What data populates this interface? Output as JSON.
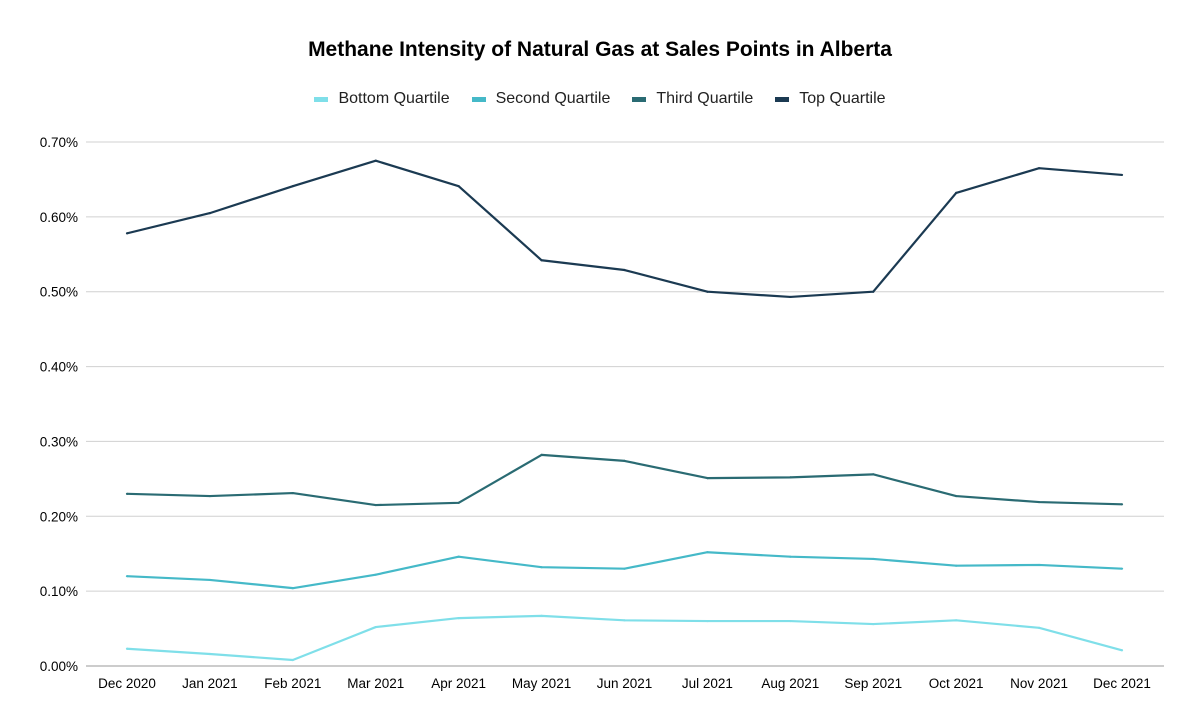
{
  "chart_data": {
    "type": "line",
    "title": "Methane Intensity of Natural Gas at Sales Points in Alberta",
    "xlabel": "",
    "ylabel": "",
    "ylim": [
      0,
      0.7
    ],
    "yticks": [
      "0.00%",
      "0.10%",
      "0.20%",
      "0.30%",
      "0.40%",
      "0.50%",
      "0.60%",
      "0.70%"
    ],
    "grid": true,
    "legend": "top",
    "categories": [
      "Dec 2020",
      "Jan 2021",
      "Feb 2021",
      "Mar 2021",
      "Apr 2021",
      "May 2021",
      "Jun 2021",
      "Jul 2021",
      "Aug 2021",
      "Sep 2021",
      "Oct 2021",
      "Nov 2021",
      "Dec 2021"
    ],
    "series": [
      {
        "name": "Bottom Quartile",
        "color": "#7fdfe9",
        "values": [
          0.023,
          0.016,
          0.008,
          0.052,
          0.064,
          0.067,
          0.061,
          0.06,
          0.06,
          0.056,
          0.061,
          0.051,
          0.021
        ]
      },
      {
        "name": "Second Quartile",
        "color": "#45b9c8",
        "values": [
          0.12,
          0.115,
          0.104,
          0.122,
          0.146,
          0.132,
          0.13,
          0.152,
          0.146,
          0.143,
          0.134,
          0.135,
          0.13
        ]
      },
      {
        "name": "Third Quartile",
        "color": "#2a6b73",
        "values": [
          0.23,
          0.227,
          0.231,
          0.215,
          0.218,
          0.282,
          0.274,
          0.251,
          0.252,
          0.256,
          0.227,
          0.219,
          0.216
        ]
      },
      {
        "name": "Top Quartile",
        "color": "#1b3a52",
        "values": [
          0.578,
          0.605,
          0.641,
          0.675,
          0.641,
          0.542,
          0.529,
          0.5,
          0.493,
          0.5,
          0.632,
          0.665,
          0.656
        ]
      }
    ]
  }
}
